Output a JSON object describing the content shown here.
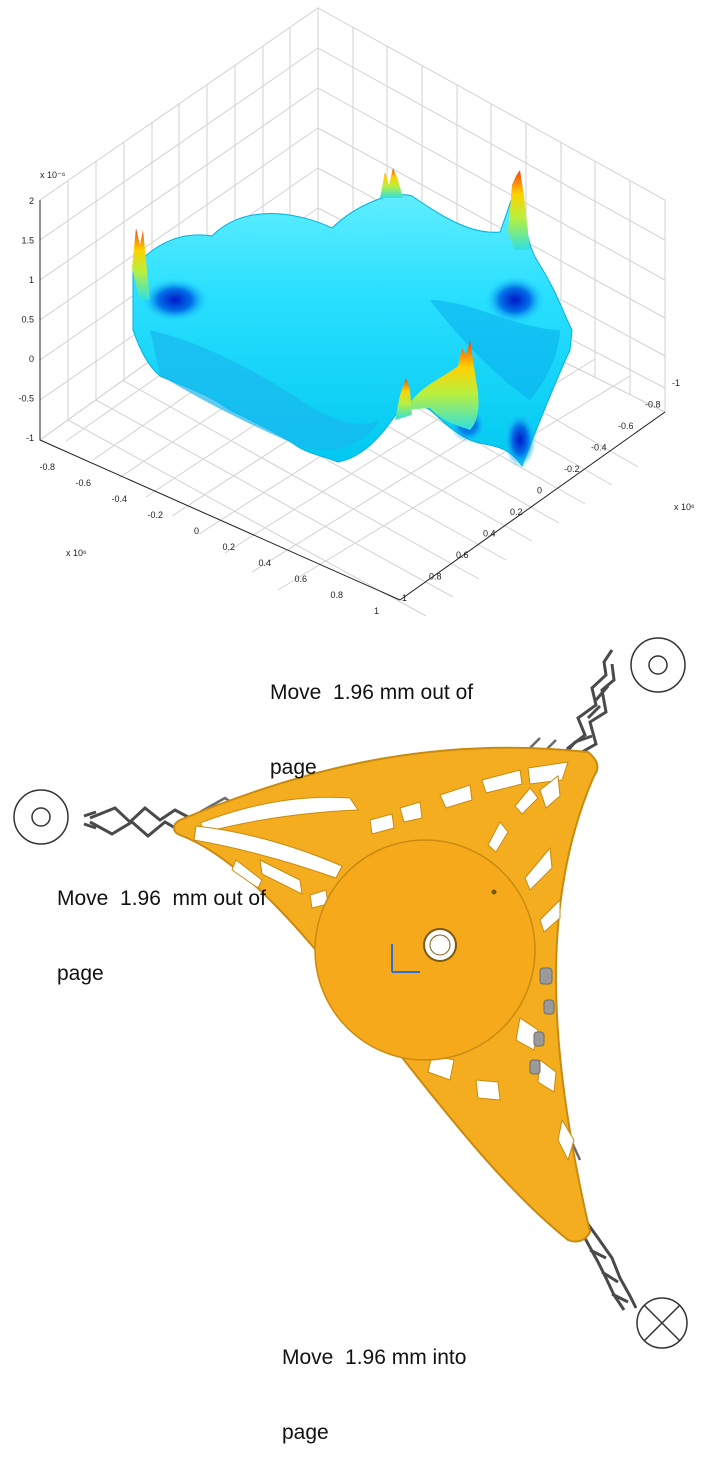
{
  "plot": {
    "z_ticks": [
      "2",
      "1.5",
      "1",
      "0.5",
      "0",
      "-0.5",
      "-1"
    ],
    "z_exponent": "x 10⁻⁶",
    "x_ticks": [
      "-0.8",
      "-0.6",
      "-0.4",
      "-0.2",
      "0",
      "0.2",
      "0.4",
      "0.6",
      "0.8",
      "1"
    ],
    "x_exponent": "x 10⁶",
    "y_ticks": [
      "-1",
      "-0.8",
      "-0.6",
      "-0.4",
      "-0.2",
      "0",
      "0.2",
      "0.4",
      "0.6",
      "0.8",
      "1"
    ],
    "y_exponent": "x 10⁶",
    "colormap": "jet"
  },
  "annotations": {
    "top": {
      "line1": "Move  1.96 mm out of",
      "line2": "page",
      "symbol": "dot-in-circle"
    },
    "left": {
      "line1": "Move  1.96  mm out of",
      "line2": "page",
      "symbol": "dot-in-circle"
    },
    "bottom": {
      "line1": "Move  1.96 mm into",
      "line2": "page",
      "symbol": "cross-in-circle"
    }
  },
  "colors": {
    "frame": "#f4ad1e",
    "frame_edge": "#c98a10",
    "flexure": "#4a4a4a",
    "axis_marker": "#2e6fd8"
  }
}
